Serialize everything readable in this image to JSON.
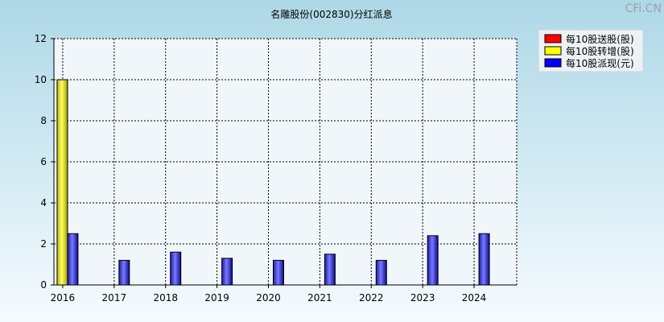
{
  "watermark": "CFi.CN",
  "chart_data": {
    "type": "bar",
    "title": "名雕股份(002830)分红派息",
    "categories": [
      "2016",
      "2017",
      "2018",
      "2019",
      "2020",
      "2021",
      "2022",
      "2023",
      "2024"
    ],
    "ylim": [
      0,
      12
    ],
    "yticks": [
      0,
      2,
      4,
      6,
      8,
      10,
      12
    ],
    "grid": true,
    "legend_position": "top-right",
    "series": [
      {
        "name": "每10股送股(股)",
        "color": "#ff0000",
        "values": [
          0,
          0,
          0,
          0,
          0,
          0,
          0,
          0,
          0
        ]
      },
      {
        "name": "每10股转增(股)",
        "color": "#ffff00",
        "values": [
          10,
          0,
          0,
          0,
          0,
          0,
          0,
          0,
          0
        ]
      },
      {
        "name": "每10股派现(元)",
        "color": "#0000ff",
        "values": [
          2.5,
          1.2,
          1.6,
          1.3,
          1.2,
          1.5,
          1.2,
          2.4,
          2.5
        ]
      }
    ]
  }
}
